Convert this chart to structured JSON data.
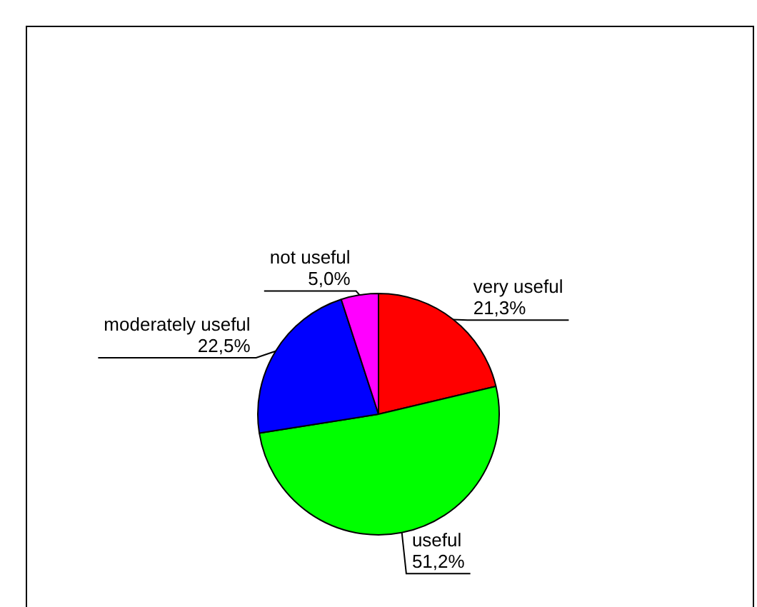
{
  "chart_data": {
    "type": "pie",
    "categories": [
      "very useful",
      "useful",
      "moderately useful",
      "not useful"
    ],
    "values": [
      21.3,
      51.2,
      22.5,
      5.0
    ],
    "value_labels": [
      "21,3%",
      "51,2%",
      "22,5%",
      "5,0%"
    ],
    "colors": [
      "#ff0000",
      "#00ff00",
      "#0000ff",
      "#ff00ff"
    ],
    "legend": false
  }
}
